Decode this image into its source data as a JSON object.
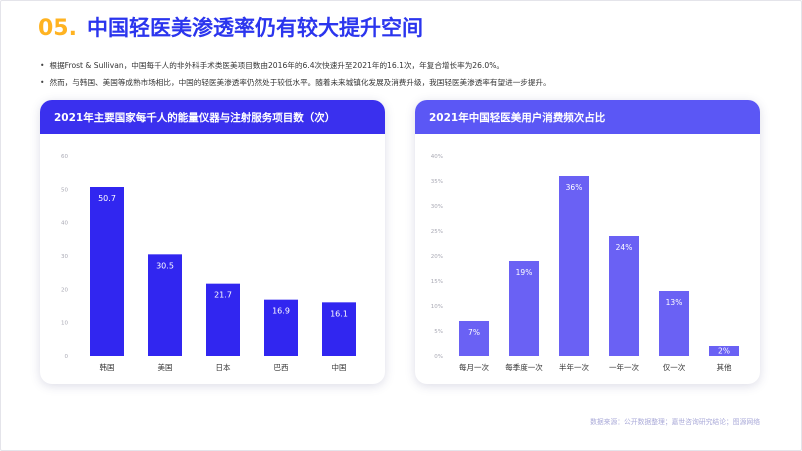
{
  "header": {
    "number": "05.",
    "title": "中国轻医美渗透率仍有较大提升空间"
  },
  "bullets": [
    "根据Frost & Sullivan，中国每千人的非外科手术类医美项目数由2016年的6.4次快速升至2021年的16.1次，年复合增长率为26.0%。",
    "然而，与韩国、美国等成熟市场相比，中国的轻医美渗透率仍然处于较低水平。随着未来城镇化发展及消费升级，我国轻医美渗透率有望进一步提升。"
  ],
  "source": "数据来源：公开数据整理；嘉世咨询研究结论；图源网络",
  "colors": {
    "accent_orange": "#ffb321",
    "accent_blue": "#2b35ee",
    "bar_left": "#3126f0",
    "bar_right": "#6a61f4"
  },
  "chart_data": [
    {
      "type": "bar",
      "title": "2021年主要国家每千人的能量仪器与注射服务项目数（次）",
      "categories": [
        "韩国",
        "美国",
        "日本",
        "巴西",
        "中国"
      ],
      "values": [
        50.7,
        30.5,
        21.7,
        16.9,
        16.1
      ],
      "value_labels": [
        "50.7",
        "30.5",
        "21.7",
        "16.9",
        "16.1"
      ],
      "ylim": [
        0,
        60
      ],
      "yticks": [
        "0",
        "10",
        "20",
        "30",
        "40",
        "50",
        "60"
      ],
      "grid": false
    },
    {
      "type": "bar",
      "title": "2021年中国轻医美用户消费频次占比",
      "categories": [
        "每月一次",
        "每季度一次",
        "半年一次",
        "一年一次",
        "仅一次",
        "其他"
      ],
      "values": [
        7,
        19,
        36,
        24,
        13,
        2
      ],
      "value_labels": [
        "7%",
        "19%",
        "36%",
        "24%",
        "13%",
        "2%"
      ],
      "ylim": [
        0,
        40
      ],
      "yticks": [
        "0%",
        "5%",
        "10%",
        "15%",
        "20%",
        "25%",
        "30%",
        "35%",
        "40%"
      ],
      "grid": false
    }
  ]
}
